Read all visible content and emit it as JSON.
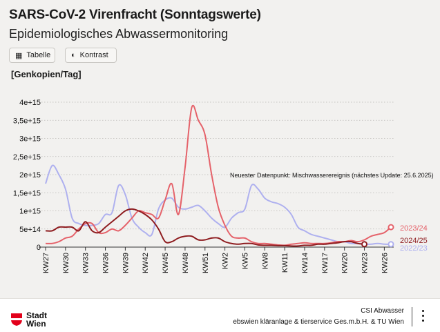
{
  "header": {
    "title": "SARS-CoV-2 Virenfracht (Sonntagswerte)",
    "subtitle": "Epidemiologisches Abwassermonitoring",
    "table_button": "Tabelle",
    "contrast_button": "Kontrast",
    "unit_label": "[Genkopien/Tag]"
  },
  "footer": {
    "logo_line1": "Stadt",
    "logo_line2": "Wien",
    "source_line1": "CSI Abwasser",
    "source_line2": "ebswien kläranlage & tierservice Ges.m.b.H. & TU Wien"
  },
  "chart_data": {
    "type": "line",
    "title": "SARS-CoV-2 Virenfracht (Sonntagswerte)",
    "ylabel": "[Genkopien/Tag]",
    "ylim": [
      0,
      4200000000000000.0
    ],
    "y_ticks": [
      0,
      500000000000000.0,
      1000000000000000.0,
      1500000000000000.0,
      2000000000000000.0,
      2500000000000000.0,
      3000000000000000.0,
      3500000000000000.0,
      4000000000000000.0
    ],
    "y_tick_labels": [
      "0",
      "5e+14",
      "1e+15",
      "1,5e+15",
      "2e+15",
      "2,5e+15",
      "3e+15",
      "3,5e+15",
      "4e+15"
    ],
    "x_tick_labels": [
      "KW27",
      "KW30",
      "KW33",
      "KW36",
      "KW39",
      "KW42",
      "KW45",
      "KW48",
      "KW51",
      "KW2",
      "KW5",
      "KW8",
      "KW11",
      "KW14",
      "KW17",
      "KW20",
      "KW23",
      "KW26"
    ],
    "grid": "horizontal dotted",
    "annotation": "Neuester Datenpunkt: Mischwasserereignis (nächstes Update: 25.6.2025)",
    "colors": {
      "s2022": "#aeb0ef",
      "s2023": "#e5626a",
      "s2024": "#8e1c1f",
      "zero_line": "#333333"
    },
    "series": [
      {
        "name": "2022/23",
        "color": "#aeb0ef",
        "values": [
          1750000000000000.0,
          2250000000000000.0,
          2000000000000000.0,
          1600000000000000.0,
          800000000000000.0,
          650000000000000.0,
          600000000000000.0,
          600000000000000.0,
          650000000000000.0,
          900000000000000.0,
          950000000000000.0,
          1700000000000000.0,
          1450000000000000.0,
          800000000000000.0,
          550000000000000.0,
          400000000000000.0,
          350000000000000.0,
          1050000000000000.0,
          1300000000000000.0,
          1350000000000000.0,
          1100000000000000.0,
          1050000000000000.0,
          1100000000000000.0,
          1150000000000000.0,
          1000000000000000.0,
          800000000000000.0,
          650000000000000.0,
          550000000000000.0,
          800000000000000.0,
          950000000000000.0,
          1050000000000000.0,
          1700000000000000.0,
          1600000000000000.0,
          1350000000000000.0,
          1250000000000000.0,
          1200000000000000.0,
          1100000000000000.0,
          900000000000000.0,
          550000000000000.0,
          450000000000000.0,
          350000000000000.0,
          300000000000000.0,
          250000000000000.0,
          200000000000000.0,
          150000000000000.0,
          150000000000000.0,
          100000000000000.0,
          100000000000000.0,
          80000000000000.0,
          80000000000000.0,
          100000000000000.0,
          80000000000000.0,
          80000000000000.0
        ]
      },
      {
        "name": "2023/24",
        "color": "#e5626a",
        "values": [
          100000000000000.0,
          100000000000000.0,
          150000000000000.0,
          250000000000000.0,
          300000000000000.0,
          500000000000000.0,
          650000000000000.0,
          650000000000000.0,
          400000000000000.0,
          400000000000000.0,
          500000000000000.0,
          450000000000000.0,
          600000000000000.0,
          800000000000000.0,
          1000000000000000.0,
          950000000000000.0,
          900000000000000.0,
          800000000000000.0,
          1300000000000000.0,
          1750000000000000.0,
          900000000000000.0,
          2200000000000000.0,
          3850000000000000.0,
          3500000000000000.0,
          3100000000000000.0,
          2000000000000000.0,
          1100000000000000.0,
          600000000000000.0,
          300000000000000.0,
          250000000000000.0,
          250000000000000.0,
          150000000000000.0,
          100000000000000.0,
          100000000000000.0,
          80000000000000.0,
          60000000000000.0,
          50000000000000.0,
          80000000000000.0,
          100000000000000.0,
          120000000000000.0,
          100000000000000.0,
          100000000000000.0,
          100000000000000.0,
          120000000000000.0,
          150000000000000.0,
          150000000000000.0,
          180000000000000.0,
          150000000000000.0,
          200000000000000.0,
          300000000000000.0,
          350000000000000.0,
          400000000000000.0,
          550000000000000.0
        ]
      },
      {
        "name": "2024/25",
        "color": "#8e1c1f",
        "values": [
          450000000000000.0,
          450000000000000.0,
          550000000000000.0,
          550000000000000.0,
          550000000000000.0,
          450000000000000.0,
          700000000000000.0,
          450000000000000.0,
          400000000000000.0,
          550000000000000.0,
          700000000000000.0,
          850000000000000.0,
          1000000000000000.0,
          1050000000000000.0,
          1000000000000000.0,
          900000000000000.0,
          750000000000000.0,
          500000000000000.0,
          150000000000000.0,
          150000000000000.0,
          250000000000000.0,
          300000000000000.0,
          300000000000000.0,
          200000000000000.0,
          200000000000000.0,
          250000000000000.0,
          250000000000000.0,
          150000000000000.0,
          100000000000000.0,
          80000000000000.0,
          100000000000000.0,
          100000000000000.0,
          60000000000000.0,
          50000000000000.0,
          50000000000000.0,
          40000000000000.0,
          40000000000000.0,
          30000000000000.0,
          30000000000000.0,
          50000000000000.0,
          50000000000000.0,
          80000000000000.0,
          80000000000000.0,
          100000000000000.0,
          120000000000000.0,
          150000000000000.0,
          150000000000000.0,
          100000000000000.0,
          80000000000000.0
        ]
      }
    ]
  }
}
